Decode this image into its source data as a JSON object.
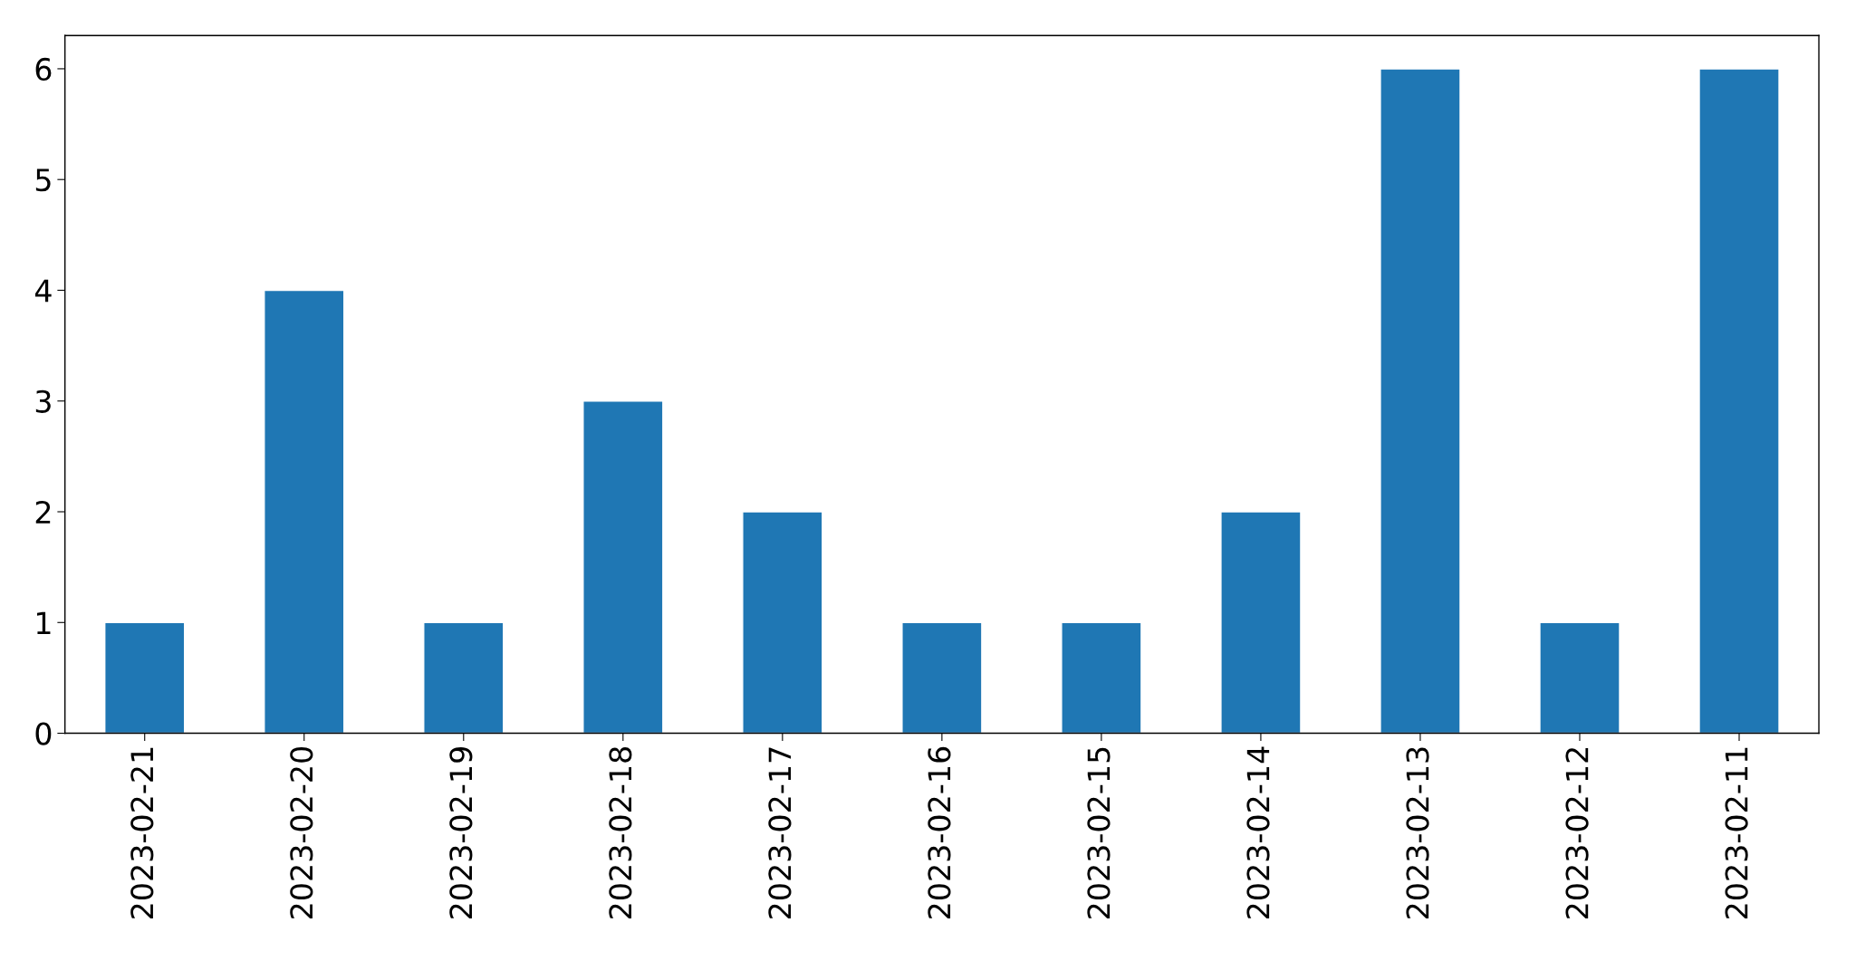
{
  "chart_data": {
    "type": "bar",
    "categories": [
      "2023-02-21",
      "2023-02-20",
      "2023-02-19",
      "2023-02-18",
      "2023-02-17",
      "2023-02-16",
      "2023-02-15",
      "2023-02-14",
      "2023-02-13",
      "2023-02-12",
      "2023-02-11"
    ],
    "values": [
      1,
      4,
      1,
      3,
      2,
      1,
      1,
      2,
      6,
      1,
      6
    ],
    "color": "#1f77b4",
    "ylim": [
      0,
      6.3
    ],
    "yticks": [
      0,
      1,
      2,
      3,
      4,
      5,
      6
    ],
    "grid": false
  }
}
